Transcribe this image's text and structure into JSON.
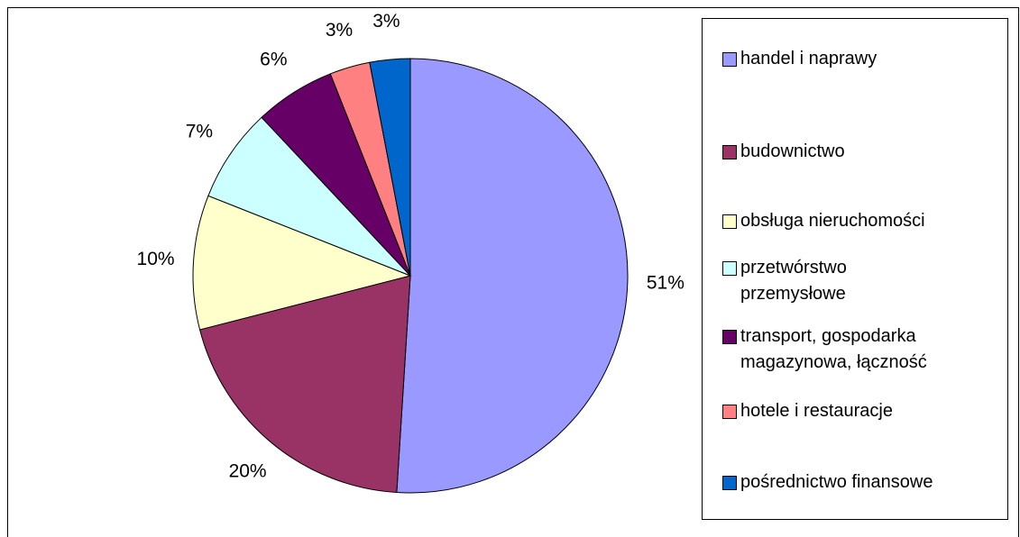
{
  "chart_data": {
    "type": "pie",
    "categories": [
      "handel i naprawy",
      "budownictwo",
      "obsługa nieruchomości",
      "przetwórstwo\nprzemysłowe",
      "transport, gospodarka\nmagazynowa, łączność",
      "hotele i restauracje",
      "pośrednictwo finansowe"
    ],
    "values": [
      51,
      20,
      10,
      7,
      6,
      3,
      3
    ],
    "value_labels": [
      "51%",
      "20%",
      "10%",
      "7%",
      "6%",
      "3%",
      "3%"
    ],
    "colors": [
      "#9999ff",
      "#993366",
      "#ffffcc",
      "#ccffff",
      "#660066",
      "#ff8080",
      "#0066cc"
    ],
    "legend": "right"
  }
}
